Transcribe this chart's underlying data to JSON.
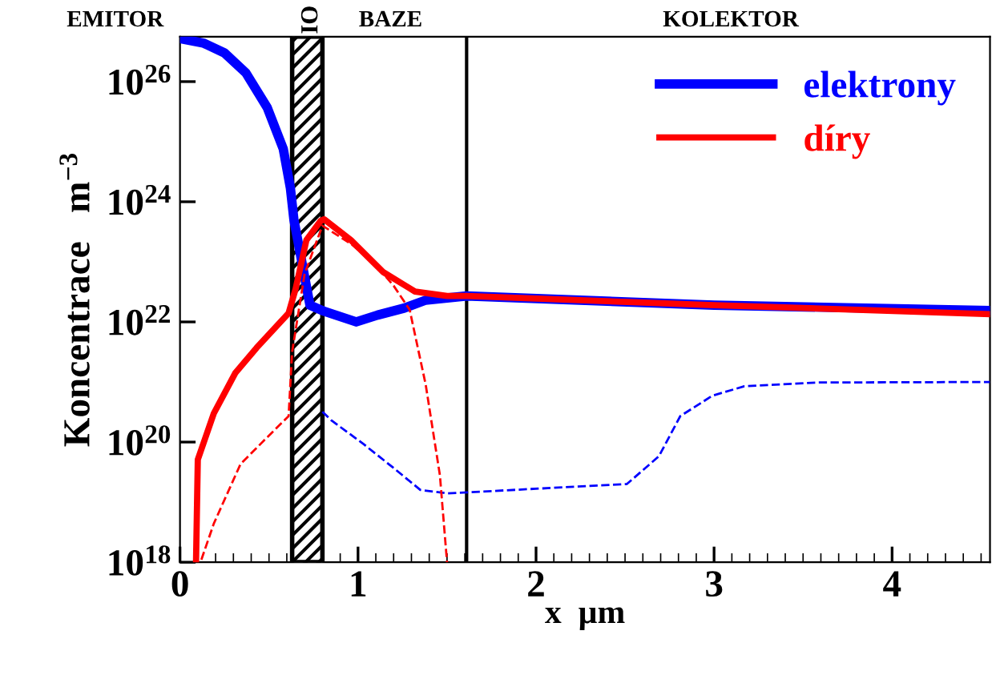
{
  "chart_data": {
    "type": "line",
    "xlabel": "x  µm",
    "ylabel": "Koncentrace   m$^{−3}$",
    "log": "y",
    "xlim": [
      0,
      4.55
    ],
    "xticks": [
      0,
      1,
      2,
      3,
      4
    ],
    "ylim": [
      1e+18,
      5.6e+26
    ],
    "yticks": [
      {
        "value": 1e+18,
        "label": "10$^{18}$"
      },
      {
        "value": 1e+20,
        "label": "10$^{20}$"
      },
      {
        "value": 1e+22,
        "label": "10$^{22}$"
      },
      {
        "value": 1e+24,
        "label": "10$^{24}$"
      },
      {
        "value": 1e+26,
        "label": "10$^{26}$"
      }
    ],
    "legend": "top right",
    "grid": false,
    "series": [
      {
        "name": "elektrony",
        "color": "#0000ff",
        "line_style": "solid",
        "x": [
          0,
          0.13,
          0.25,
          0.37,
          0.49,
          0.58,
          0.62,
          0.64,
          0.73,
          0.81,
          0.99,
          1.11,
          1.26,
          1.38,
          1.61,
          3.0,
          4.55
        ],
        "values": [
          5.2e+26,
          4.4e+26,
          3e+26,
          1.4e+26,
          3.7e+25,
          7.6e+24,
          1.7e+24,
          5e+23,
          1.9e+22,
          1.5e+22,
          1e+22,
          1.3e+22,
          1.7e+22,
          2.3e+22,
          2.7e+22,
          1.9e+22,
          1.55e+22
        ]
      },
      {
        "name": "díry",
        "color": "#ff0000",
        "line_style": "solid",
        "x": [
          0.09,
          0.1,
          0.19,
          0.31,
          0.43,
          0.61,
          0.65,
          0.71,
          0.79,
          0.81,
          0.96,
          1.14,
          1.32,
          1.5,
          1.61,
          3.0,
          4.55
        ],
        "values": [
          1e+18,
          5.1e+19,
          3e+20,
          1.4e+21,
          3.7e+21,
          1.4e+22,
          3.6e+22,
          2.3e+23,
          4.8e+23,
          5.1e+23,
          2.3e+23,
          6.8e+22,
          3.2e+22,
          2.7e+22,
          2.7e+22,
          1.9e+22,
          1.35e+22
        ]
      },
      {
        "color": "#0000ff",
        "line_style": "dashed",
        "x": [
          0.8,
          0.85,
          1.03,
          1.2,
          1.35,
          1.5,
          2.51,
          2.69,
          2.81,
          2.99,
          3.17,
          3.58,
          4.55
        ],
        "values": [
          3.2e+20,
          2.3e+20,
          9.3e+19,
          3.7e+19,
          1.6e+19,
          1.4e+19,
          2e+19,
          5.8e+19,
          2.7e+20,
          5.9e+20,
          8.5e+20,
          9.8e+20,
          1e+21
        ]
      },
      {
        "color": "#ff0000",
        "line_style": "dashed",
        "x": [
          0.12,
          0.19,
          0.34,
          0.49,
          0.61,
          0.63,
          0.7,
          0.8,
          0.96,
          1.1,
          1.2,
          1.29,
          1.38,
          1.46,
          1.5
        ],
        "values": [
          1.1e+18,
          4.4e+18,
          4.3e+19,
          1.2e+20,
          2.7e+20,
          3.2e+21,
          6.3e+22,
          4e+23,
          2e+23,
          8.9e+22,
          4e+22,
          1.6e+22,
          9.1e+20,
          2.8e+19,
          1e+18
        ]
      }
    ],
    "bands": [
      {
        "axis": "x",
        "from": 0.63,
        "to": 0.8,
        "label": "OI",
        "color": "#000000"
      }
    ],
    "annotations": [
      "EMITOR",
      "BAZE",
      "KOLEKTOR"
    ],
    "ref_lines": [
      {
        "axis": "x",
        "value": 1.61,
        "color": "#000000",
        "line_style": "solid"
      }
    ]
  }
}
